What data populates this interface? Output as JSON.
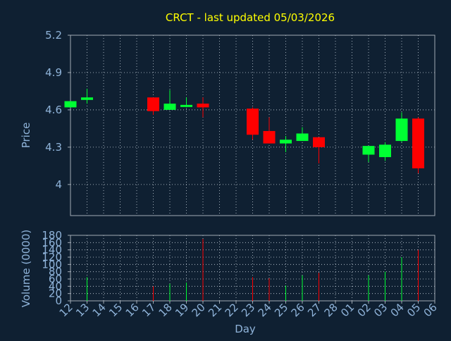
{
  "title": "CRCT - last updated 05/03/2026",
  "colors": {
    "background": "#0f2032",
    "title": "#ffff00",
    "axis_text": "#8fb3d9",
    "grid": "#c8d2dc",
    "frame": "#a0aab4",
    "up": "#00ff33",
    "down": "#ff0000"
  },
  "chart_data": [
    {
      "type": "candlestick",
      "title": "CRCT - last updated 05/03/2026",
      "ylabel": "Price",
      "ylim": [
        3.75,
        5.2
      ],
      "yticks": [
        4,
        4.3,
        4.6,
        4.9,
        5.2
      ],
      "yticklabels": [
        "4",
        "4.3",
        "4.6",
        "4.9",
        "5.2"
      ],
      "grid": true,
      "categories": [
        "12",
        "13",
        "14",
        "15",
        "16",
        "17",
        "18",
        "19",
        "20",
        "21",
        "22",
        "23",
        "24",
        "25",
        "26",
        "27",
        "28",
        "01",
        "02",
        "03",
        "04",
        "05",
        "06"
      ],
      "candles": [
        {
          "x": "12",
          "open": 4.62,
          "high": 4.67,
          "low": 4.62,
          "close": 4.67,
          "dir": "up"
        },
        {
          "x": "13",
          "open": 4.68,
          "high": 4.77,
          "low": 4.65,
          "close": 4.7,
          "dir": "up"
        },
        {
          "x": "17",
          "open": 4.7,
          "high": 4.7,
          "low": 4.56,
          "close": 4.59,
          "dir": "down"
        },
        {
          "x": "18",
          "open": 4.6,
          "high": 4.76,
          "low": 4.6,
          "close": 4.65,
          "dir": "up"
        },
        {
          "x": "19",
          "open": 4.63,
          "high": 4.7,
          "low": 4.62,
          "close": 4.64,
          "dir": "up"
        },
        {
          "x": "20",
          "open": 4.65,
          "high": 4.7,
          "low": 4.54,
          "close": 4.62,
          "dir": "down"
        },
        {
          "x": "23",
          "open": 4.61,
          "high": 4.62,
          "low": 4.36,
          "close": 4.4,
          "dir": "down"
        },
        {
          "x": "24",
          "open": 4.43,
          "high": 4.54,
          "low": 4.33,
          "close": 4.33,
          "dir": "down"
        },
        {
          "x": "25",
          "open": 4.33,
          "high": 4.39,
          "low": 4.26,
          "close": 4.36,
          "dir": "up"
        },
        {
          "x": "26",
          "open": 4.35,
          "high": 4.46,
          "low": 4.35,
          "close": 4.41,
          "dir": "up"
        },
        {
          "x": "27",
          "open": 4.38,
          "high": 4.38,
          "low": 4.17,
          "close": 4.3,
          "dir": "down"
        },
        {
          "x": "02",
          "open": 4.24,
          "high": 4.3,
          "low": 4.18,
          "close": 4.31,
          "dir": "up"
        },
        {
          "x": "03",
          "open": 4.22,
          "high": 4.34,
          "low": 4.19,
          "close": 4.32,
          "dir": "up"
        },
        {
          "x": "04",
          "open": 4.35,
          "high": 4.58,
          "low": 4.34,
          "close": 4.53,
          "dir": "up"
        },
        {
          "x": "05",
          "open": 4.53,
          "high": 4.54,
          "low": 4.09,
          "close": 4.13,
          "dir": "down"
        }
      ]
    },
    {
      "type": "bar",
      "ylabel": "Volume (0000)",
      "xlabel": "Day",
      "ylim": [
        0,
        180
      ],
      "yticks": [
        0,
        20,
        40,
        60,
        80,
        100,
        120,
        140,
        160,
        180
      ],
      "yticklabels": [
        "0",
        "20",
        "40",
        "60",
        "80",
        "100",
        "120",
        "140",
        "160",
        "180"
      ],
      "grid": true,
      "categories": [
        "12",
        "13",
        "14",
        "15",
        "16",
        "17",
        "18",
        "19",
        "20",
        "21",
        "22",
        "23",
        "24",
        "25",
        "26",
        "27",
        "28",
        "01",
        "02",
        "03",
        "04",
        "05",
        "06"
      ],
      "bars": [
        {
          "x": "13",
          "value": 65,
          "dir": "up"
        },
        {
          "x": "17",
          "value": 40,
          "dir": "down"
        },
        {
          "x": "18",
          "value": 47,
          "dir": "up"
        },
        {
          "x": "19",
          "value": 50,
          "dir": "up"
        },
        {
          "x": "20",
          "value": 170,
          "dir": "down"
        },
        {
          "x": "23",
          "value": 65,
          "dir": "down"
        },
        {
          "x": "24",
          "value": 62,
          "dir": "down"
        },
        {
          "x": "25",
          "value": 42,
          "dir": "up"
        },
        {
          "x": "26",
          "value": 70,
          "dir": "up"
        },
        {
          "x": "27",
          "value": 77,
          "dir": "down"
        },
        {
          "x": "02",
          "value": 70,
          "dir": "up"
        },
        {
          "x": "03",
          "value": 80,
          "dir": "up"
        },
        {
          "x": "04",
          "value": 120,
          "dir": "up"
        },
        {
          "x": "05",
          "value": 140,
          "dir": "down"
        }
      ]
    }
  ]
}
